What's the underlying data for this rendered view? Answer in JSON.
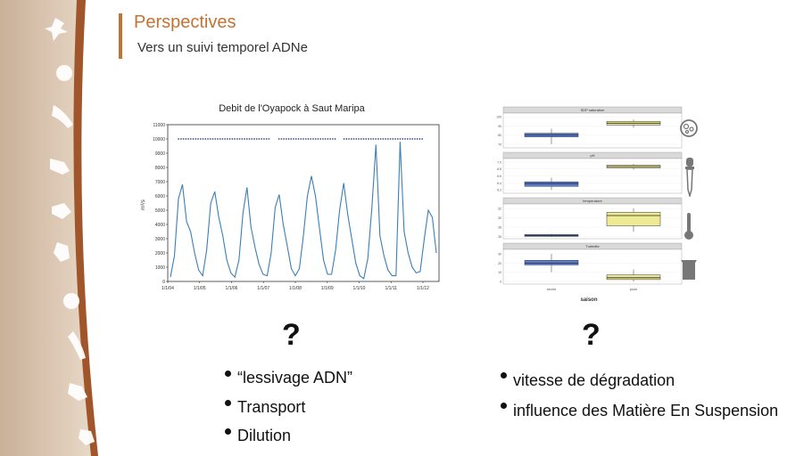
{
  "slide": {
    "title": "Perspectives",
    "subtitle": "Vers un suivi temporel ADNe",
    "colors": {
      "accent": "#c27334",
      "band": "#d9c3ae",
      "line": "#3b7fb5",
      "box_blue": "#5b7fd6",
      "box_yellow": "#eeea94"
    }
  },
  "chart_data": [
    {
      "type": "line",
      "title": "Debit de l'Oyapock à Saut Maripa",
      "ylabel": "m³/s",
      "ylim": [
        0,
        11000
      ],
      "yticks": [
        "0",
        "1000",
        "2000",
        "3000",
        "4000",
        "5000",
        "6000",
        "7000",
        "8000",
        "9000",
        "10000",
        "11000"
      ],
      "xticks": [
        "1/1/04",
        "1/1/05",
        "1/1/06",
        "1/1/07",
        "1/1/08",
        "1/1/09",
        "1/1/10",
        "1/1/11",
        "1/1/12"
      ],
      "threshold": 10000,
      "series": [
        {
          "values": [
            300,
            1800,
            5800,
            6800,
            4200,
            3500,
            2000,
            800,
            400,
            2200,
            5500,
            6300,
            4500,
            3200,
            1500,
            600,
            300,
            1500,
            4800,
            6600,
            3800,
            2400,
            1200,
            500,
            400,
            2000,
            5200,
            6100,
            4000,
            2500,
            900,
            400,
            900,
            3200,
            6000,
            7400,
            6000,
            3700,
            1500,
            500,
            500,
            2200,
            5000,
            6900,
            4700,
            3000,
            1300,
            400,
            200,
            1600,
            5200,
            9600,
            3200,
            1800,
            800,
            400,
            400,
            9800,
            3500,
            2000,
            1000,
            600,
            700,
            3000,
            5000,
            4500,
            2000
          ]
        }
      ]
    },
    {
      "type": "box",
      "xlabel": "saison",
      "categories": [
        "sèche",
        "pluie"
      ],
      "panels": [
        {
          "title": "SDP saturation",
          "yticks": [
            "70",
            "80",
            "90",
            "100"
          ],
          "ylim": [
            66,
            104
          ],
          "boxes": [
            {
              "q1": 78,
              "med": 80,
              "q3": 82,
              "lo": 70,
              "hi": 87
            },
            {
              "q1": 91,
              "med": 93,
              "q3": 95,
              "lo": 88,
              "hi": 97
            }
          ]
        },
        {
          "title": "pH",
          "yticks": [
            "6.2",
            "6.4",
            "6.6",
            "6.8",
            "7.0"
          ],
          "ylim": [
            6.1,
            7.1
          ],
          "boxes": [
            {
              "q1": 6.3,
              "med": 6.38,
              "q3": 6.43,
              "lo": 6.2,
              "hi": 6.55
            },
            {
              "q1": 6.83,
              "med": 6.87,
              "q3": 6.91,
              "lo": 6.78,
              "hi": 6.95
            }
          ]
        },
        {
          "title": "temperature",
          "yticks": [
            "26",
            "28",
            "30",
            "32"
          ],
          "ylim": [
            25.5,
            33
          ],
          "boxes": [
            {
              "q1": 26,
              "med": 26.2,
              "q3": 26.4,
              "lo": 25.9,
              "hi": 26.6
            },
            {
              "q1": 28.3,
              "med": 30.5,
              "q3": 31.2,
              "lo": 27,
              "hi": 32
            }
          ]
        },
        {
          "title": "Turbidite",
          "yticks": [
            "0",
            "10",
            "20",
            "30"
          ],
          "ylim": [
            -3,
            35
          ],
          "boxes": [
            {
              "q1": 18,
              "med": 20,
              "q3": 23,
              "lo": 10,
              "hi": 30
            },
            {
              "q1": 2,
              "med": 4,
              "q3": 7,
              "lo": 0,
              "hi": 13
            }
          ]
        }
      ]
    }
  ],
  "left_column": {
    "question": "?",
    "items": [
      "“lessivage ADN”",
      "Transport",
      "Dilution"
    ]
  },
  "right_column": {
    "question": "?",
    "items": [
      "vitesse de dégradation",
      "influence des Matière En Suspension"
    ]
  },
  "icons": [
    "oxygen-bubbles-icon",
    "pipette-icon",
    "thermometer-icon",
    "beaker-icon"
  ]
}
